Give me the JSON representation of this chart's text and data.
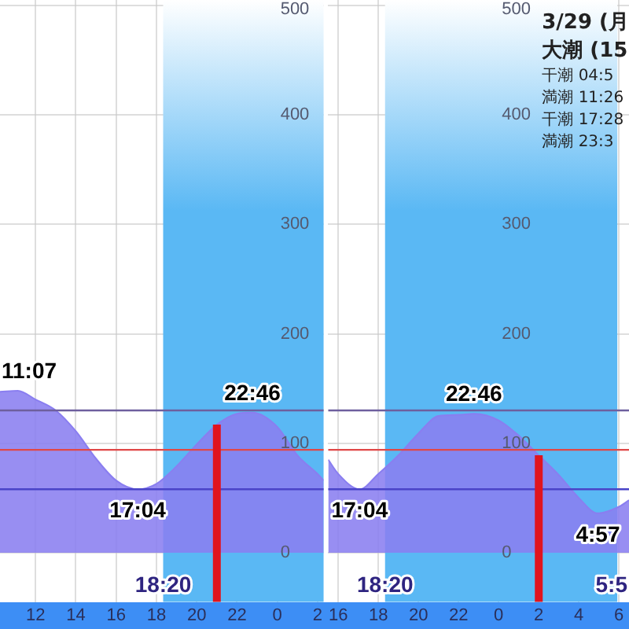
{
  "chart_data": [
    {
      "type": "area",
      "x": [
        "--03-28T10:14",
        "--03-28T11:07",
        "--03-28T12:00",
        "--03-28T13:00",
        "--03-28T14:00",
        "--03-28T15:00",
        "--03-28T16:00",
        "--03-28T17:04",
        "--03-28T18:00",
        "--03-28T19:00",
        "--03-28T20:00",
        "--03-28T21:00",
        "--03-28T22:00",
        "--03-28T22:46",
        "--03-29T00:00",
        "--03-29T01:00",
        "--03-29T02:00",
        "--03-29T02:18"
      ],
      "series": [
        {
          "color": "#8a7ef0",
          "values": [
            147,
            148,
            140,
            130,
            111,
            86,
            66,
            58,
            63,
            79,
            99,
            117,
            127,
            128,
            115,
            89,
            72,
            66
          ]
        }
      ],
      "xlim": [
        "--03-28T10:14",
        "--03-29T02:18"
      ],
      "xticks": [
        {
          "value": "--03-28T12:00",
          "label": "12"
        },
        {
          "value": "--03-28T14:00",
          "label": "14"
        },
        {
          "value": "--03-28T16:00",
          "label": "16"
        },
        {
          "value": "--03-28T18:00",
          "label": "18"
        },
        {
          "value": "--03-28T20:00",
          "label": "20"
        },
        {
          "value": "--03-28T22:00",
          "label": "22"
        },
        {
          "value": "--03-29T00:00",
          "label": "0"
        },
        {
          "value": "--03-29T02:00",
          "label": "2"
        }
      ],
      "ylim": [
        -45,
        505
      ],
      "yticks": [
        0,
        100,
        200,
        300,
        400,
        500
      ],
      "grid": true,
      "ref_lines": [
        {
          "axis": "y",
          "value": 130,
          "color": "#6e5f9e"
        },
        {
          "axis": "y",
          "value": 94,
          "color": "#e04848"
        },
        {
          "axis": "y",
          "value": 58,
          "color": "#4a44c8"
        },
        {
          "axis": "x",
          "value": "--03-28T21:00",
          "color": "#e0141e"
        }
      ],
      "bands": [
        {
          "axis": "x",
          "from": "--03-28T18:20",
          "to": "--03-29T02:18",
          "label": "18:20",
          "color": "#5ab8f4"
        }
      ],
      "annotations": [
        {
          "text": "11:07",
          "x": "--03-28T11:07",
          "y": 148
        },
        {
          "text": "17:04",
          "x": "--03-28T17:04",
          "y": 58
        },
        {
          "text": "22:46",
          "x": "--03-28T22:46",
          "y": 128
        }
      ]
    },
    {
      "type": "area",
      "x": [
        "--03-28T15:30",
        "--03-28T16:00",
        "--03-28T17:04",
        "--03-28T18:00",
        "--03-28T19:00",
        "--03-28T20:00",
        "--03-28T21:00",
        "--03-28T22:00",
        "--03-28T22:46",
        "--03-29T00:00",
        "--03-29T01:00",
        "--03-29T02:00",
        "--03-29T03:00",
        "--03-29T04:00",
        "--03-29T04:57",
        "--03-29T06:00",
        "--03-29T06:30"
      ],
      "series": [
        {
          "color": "#8a7ef0",
          "values": [
            85,
            72,
            58,
            72,
            89,
            109,
            125,
            126,
            127,
            121,
            107,
            89,
            71,
            50,
            36,
            42,
            48
          ]
        }
      ],
      "xlim": [
        "--03-28T15:30",
        "--03-29T06:30"
      ],
      "xticks": [
        {
          "value": "--03-28T16:00",
          "label": "16"
        },
        {
          "value": "--03-28T18:00",
          "label": "18"
        },
        {
          "value": "--03-28T20:00",
          "label": "20"
        },
        {
          "value": "--03-28T22:00",
          "label": "22"
        },
        {
          "value": "--03-29T00:00",
          "label": "0"
        },
        {
          "value": "--03-29T02:00",
          "label": "2"
        },
        {
          "value": "--03-29T04:00",
          "label": "4"
        },
        {
          "value": "--03-29T06:00",
          "label": "6"
        }
      ],
      "ylim": [
        -45,
        505
      ],
      "yticks": [
        0,
        100,
        200,
        300,
        400,
        500
      ],
      "grid": true,
      "ref_lines": [
        {
          "axis": "y",
          "value": 130,
          "color": "#6e5f9e"
        },
        {
          "axis": "y",
          "value": 94,
          "color": "#e04848"
        },
        {
          "axis": "y",
          "value": 58,
          "color": "#4a44c8"
        },
        {
          "axis": "x",
          "value": "--03-29T02:00",
          "color": "#e0141e"
        }
      ],
      "bands": [
        {
          "axis": "x",
          "from": "--03-28T18:20",
          "to": "--03-29T05:55",
          "label": "18:20",
          "color": "#5ab8f4"
        }
      ],
      "annotations": [
        {
          "text": "17:04",
          "x": "--03-28T17:04",
          "y": 58
        },
        {
          "text": "22:46",
          "x": "--03-28T22:46",
          "y": 127
        },
        {
          "text": "4:57",
          "x": "--03-29T04:57",
          "y": 36
        },
        {
          "text": "5:5",
          "x": "--03-29T05:55"
        },
        "3/29 (月",
        "大潮 (15",
        "干潮 04:5",
        "満潮 11:26",
        "干潮 17:28",
        "満潮 23:3"
      ]
    }
  ]
}
